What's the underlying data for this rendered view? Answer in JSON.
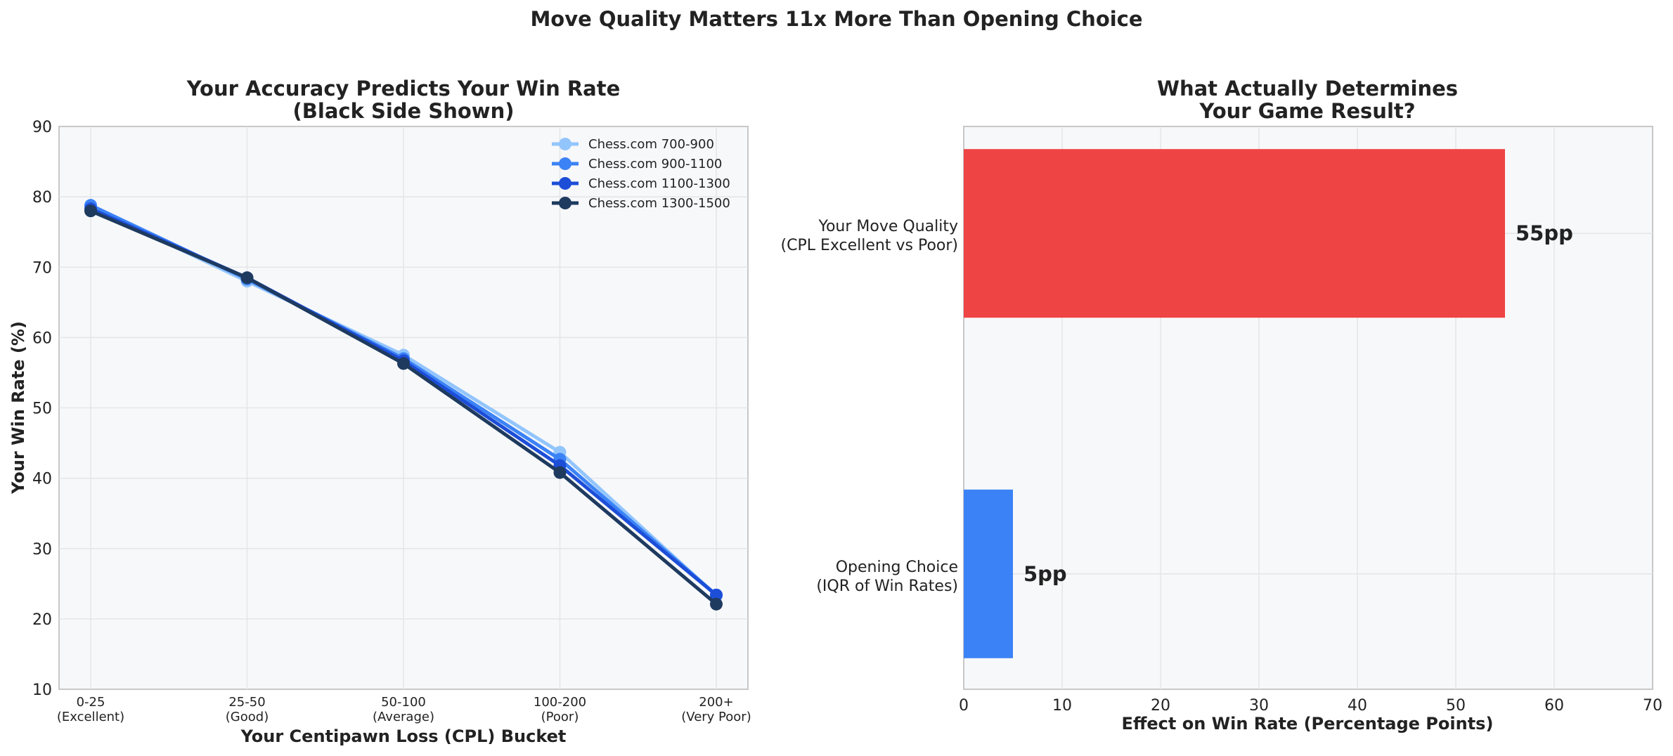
{
  "suptitle": "Move Quality Matters 11x More Than Opening Choice",
  "chart_data": [
    {
      "type": "line",
      "title_lines": [
        "Your Accuracy Predicts Your Win Rate",
        "(Black Side Shown)"
      ],
      "xlabel": "Your Centipawn Loss (CPL) Bucket",
      "ylabel": "Your Win Rate (%)",
      "ylim": [
        10,
        90
      ],
      "yticks": [
        10,
        20,
        30,
        40,
        50,
        60,
        70,
        80,
        90
      ],
      "categories": [
        [
          "0-25",
          "(Excellent)"
        ],
        [
          "25-50",
          "(Good)"
        ],
        [
          "50-100",
          "(Average)"
        ],
        [
          "100-200",
          "(Poor)"
        ],
        [
          "200+",
          "(Very Poor)"
        ]
      ],
      "grid": true,
      "legend_position": "top-right",
      "series": [
        {
          "name": "Chess.com 700-900",
          "color": "#93c5fd",
          "values": [
            78.6,
            68.0,
            57.5,
            43.7,
            23.3
          ]
        },
        {
          "name": "Chess.com 900-1100",
          "color": "#3b82f6",
          "values": [
            78.8,
            68.3,
            57.0,
            42.7,
            23.4
          ]
        },
        {
          "name": "Chess.com 1100-1300",
          "color": "#1d4ed8",
          "values": [
            78.3,
            68.5,
            56.7,
            41.8,
            23.4
          ]
        },
        {
          "name": "Chess.com 1300-1500",
          "color": "#1e3a5f",
          "values": [
            78.0,
            68.5,
            56.3,
            40.8,
            22.1
          ]
        }
      ]
    },
    {
      "type": "bar",
      "orientation": "horizontal",
      "title_lines": [
        "What Actually Determines",
        "Your Game Result?"
      ],
      "xlabel": "Effect on Win Rate (Percentage Points)",
      "xlim": [
        0,
        70
      ],
      "xticks": [
        0,
        10,
        20,
        30,
        40,
        50,
        60,
        70
      ],
      "grid": true,
      "bars": [
        {
          "label_lines": [
            "Your Move Quality",
            "(CPL Excellent vs Poor)"
          ],
          "value": 55,
          "value_label": "55pp",
          "color": "#ef4444"
        },
        {
          "label_lines": [
            "Opening Choice",
            "(IQR of Win Rates)"
          ],
          "value": 5,
          "value_label": "5pp",
          "color": "#3b82f6"
        }
      ]
    }
  ]
}
